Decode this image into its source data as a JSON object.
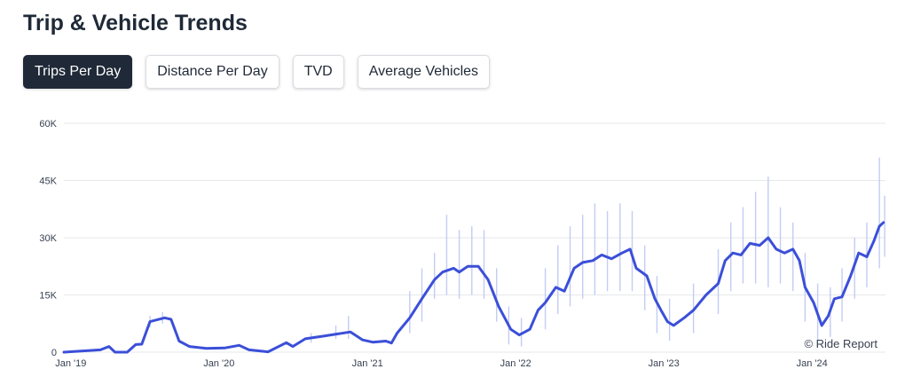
{
  "header": {
    "title": "Trip & Vehicle Trends"
  },
  "tabs": [
    {
      "label": "Trips Per Day",
      "active": true
    },
    {
      "label": "Distance Per Day",
      "active": false
    },
    {
      "label": "TVD",
      "active": false
    },
    {
      "label": "Average Vehicles",
      "active": false
    }
  ],
  "credit": "© Ride Report",
  "colors": {
    "line": "#3b4fd8",
    "band": "#c3ccf4",
    "active_tab": "#1f2937"
  },
  "chart_data": {
    "type": "line",
    "title": "",
    "xlabel": "",
    "ylabel": "",
    "grid": true,
    "ylim": [
      0,
      60000
    ],
    "xlim": [
      "2018-12-15",
      "2024-06-30"
    ],
    "y_ticks": [
      {
        "value": 0,
        "label": "0"
      },
      {
        "value": 15000,
        "label": "15K"
      },
      {
        "value": 30000,
        "label": "30K"
      },
      {
        "value": 45000,
        "label": "45K"
      },
      {
        "value": 60000,
        "label": "60K"
      }
    ],
    "x_ticks": [
      {
        "date": "2019-01-01",
        "label": "Jan '19"
      },
      {
        "date": "2020-01-01",
        "label": "Jan '20"
      },
      {
        "date": "2021-01-01",
        "label": "Jan '21"
      },
      {
        "date": "2022-01-01",
        "label": "Jan '22"
      },
      {
        "date": "2023-01-01",
        "label": "Jan '23"
      },
      {
        "date": "2024-01-01",
        "label": "Jan '24"
      }
    ],
    "series": [
      {
        "points": [
          [
            "2018-12-15",
            0
          ],
          [
            "2019-03-15",
            600
          ],
          [
            "2019-04-05",
            1500
          ],
          [
            "2019-04-20",
            0
          ],
          [
            "2019-05-20",
            0
          ],
          [
            "2019-06-10",
            2000
          ],
          [
            "2019-06-25",
            2100
          ],
          [
            "2019-07-15",
            8000
          ],
          [
            "2019-08-20",
            9000
          ],
          [
            "2019-09-05",
            8600
          ],
          [
            "2019-09-25",
            2900
          ],
          [
            "2019-10-20",
            1500
          ],
          [
            "2019-12-01",
            1000
          ],
          [
            "2020-01-15",
            1100
          ],
          [
            "2020-02-20",
            1800
          ],
          [
            "2020-03-15",
            600
          ],
          [
            "2020-05-01",
            100
          ],
          [
            "2020-06-15",
            2500
          ],
          [
            "2020-07-01",
            1500
          ],
          [
            "2020-08-01",
            3500
          ],
          [
            "2020-09-15",
            4200
          ],
          [
            "2020-10-20",
            4800
          ],
          [
            "2020-11-20",
            5300
          ],
          [
            "2020-12-20",
            3200
          ],
          [
            "2021-01-15",
            2600
          ],
          [
            "2021-02-15",
            2900
          ],
          [
            "2021-03-01",
            2400
          ],
          [
            "2021-03-15",
            5000
          ],
          [
            "2021-04-15",
            9000
          ],
          [
            "2021-05-15",
            14000
          ],
          [
            "2021-06-15",
            19000
          ],
          [
            "2021-07-05",
            21000
          ],
          [
            "2021-08-01",
            22000
          ],
          [
            "2021-08-15",
            21000
          ],
          [
            "2021-09-05",
            22500
          ],
          [
            "2021-10-01",
            22500
          ],
          [
            "2021-10-25",
            19000
          ],
          [
            "2021-11-20",
            12000
          ],
          [
            "2021-12-20",
            6000
          ],
          [
            "2022-01-10",
            4500
          ],
          [
            "2022-02-05",
            6000
          ],
          [
            "2022-02-25",
            11000
          ],
          [
            "2022-03-15",
            13000
          ],
          [
            "2022-04-10",
            17000
          ],
          [
            "2022-05-01",
            16000
          ],
          [
            "2022-05-25",
            22000
          ],
          [
            "2022-06-15",
            23500
          ],
          [
            "2022-07-10",
            24000
          ],
          [
            "2022-08-01",
            25500
          ],
          [
            "2022-08-25",
            24500
          ],
          [
            "2022-09-20",
            26000
          ],
          [
            "2022-10-10",
            27000
          ],
          [
            "2022-10-25",
            22000
          ],
          [
            "2022-11-20",
            20000
          ],
          [
            "2022-12-10",
            14000
          ],
          [
            "2022-12-25",
            11000
          ],
          [
            "2023-01-10",
            8000
          ],
          [
            "2023-01-25",
            7000
          ],
          [
            "2023-02-20",
            9000
          ],
          [
            "2023-03-15",
            11000
          ],
          [
            "2023-04-15",
            15000
          ],
          [
            "2023-05-15",
            18000
          ],
          [
            "2023-06-01",
            24000
          ],
          [
            "2023-06-20",
            26000
          ],
          [
            "2023-07-10",
            25500
          ],
          [
            "2023-08-01",
            28500
          ],
          [
            "2023-08-25",
            28000
          ],
          [
            "2023-09-15",
            30000
          ],
          [
            "2023-10-05",
            27000
          ],
          [
            "2023-10-25",
            26000
          ],
          [
            "2023-11-15",
            27000
          ],
          [
            "2023-12-01",
            24000
          ],
          [
            "2023-12-15",
            17000
          ],
          [
            "2024-01-05",
            13000
          ],
          [
            "2024-01-25",
            7000
          ],
          [
            "2024-02-10",
            9500
          ],
          [
            "2024-02-25",
            14000
          ],
          [
            "2024-03-15",
            14500
          ],
          [
            "2024-04-05",
            20000
          ],
          [
            "2024-04-25",
            26000
          ],
          [
            "2024-05-15",
            25000
          ],
          [
            "2024-06-01",
            29000
          ],
          [
            "2024-06-15",
            33000
          ],
          [
            "2024-06-25",
            34000
          ]
        ]
      }
    ],
    "daily_range": [
      [
        "2019-07-15",
        6500,
        9500
      ],
      [
        "2019-08-15",
        7500,
        10500
      ],
      [
        "2020-08-15",
        2500,
        5000
      ],
      [
        "2020-10-15",
        3500,
        7000
      ],
      [
        "2020-11-15",
        3500,
        9500
      ],
      [
        "2021-04-15",
        5000,
        16000
      ],
      [
        "2021-05-15",
        8000,
        22000
      ],
      [
        "2021-06-15",
        14000,
        26000
      ],
      [
        "2021-07-15",
        15000,
        36000
      ],
      [
        "2021-08-15",
        14000,
        32000
      ],
      [
        "2021-09-15",
        15000,
        33000
      ],
      [
        "2021-10-15",
        14000,
        32000
      ],
      [
        "2021-11-15",
        8000,
        22000
      ],
      [
        "2021-12-15",
        2000,
        12000
      ],
      [
        "2022-01-15",
        1500,
        9000
      ],
      [
        "2022-03-15",
        6000,
        22000
      ],
      [
        "2022-04-15",
        10000,
        28000
      ],
      [
        "2022-05-15",
        12000,
        33000
      ],
      [
        "2022-06-15",
        14000,
        36000
      ],
      [
        "2022-07-15",
        15000,
        39000
      ],
      [
        "2022-08-15",
        16000,
        37000
      ],
      [
        "2022-09-15",
        16000,
        39000
      ],
      [
        "2022-10-15",
        16000,
        37000
      ],
      [
        "2022-11-15",
        11000,
        28000
      ],
      [
        "2022-12-15",
        5000,
        20000
      ],
      [
        "2023-01-15",
        3000,
        14000
      ],
      [
        "2023-03-15",
        5000,
        18000
      ],
      [
        "2023-05-15",
        10000,
        27000
      ],
      [
        "2023-06-15",
        16000,
        34000
      ],
      [
        "2023-07-15",
        18000,
        38000
      ],
      [
        "2023-08-15",
        18000,
        42000
      ],
      [
        "2023-09-15",
        17000,
        46000
      ],
      [
        "2023-10-15",
        18000,
        38000
      ],
      [
        "2023-11-15",
        16000,
        34000
      ],
      [
        "2023-12-15",
        8000,
        26000
      ],
      [
        "2024-01-15",
        3000,
        18000
      ],
      [
        "2024-02-15",
        4000,
        17000
      ],
      [
        "2024-03-15",
        8000,
        22000
      ],
      [
        "2024-04-15",
        14000,
        30000
      ],
      [
        "2024-05-15",
        17000,
        34000
      ],
      [
        "2024-06-15",
        22000,
        51000
      ],
      [
        "2024-06-28",
        25000,
        41000
      ]
    ]
  }
}
